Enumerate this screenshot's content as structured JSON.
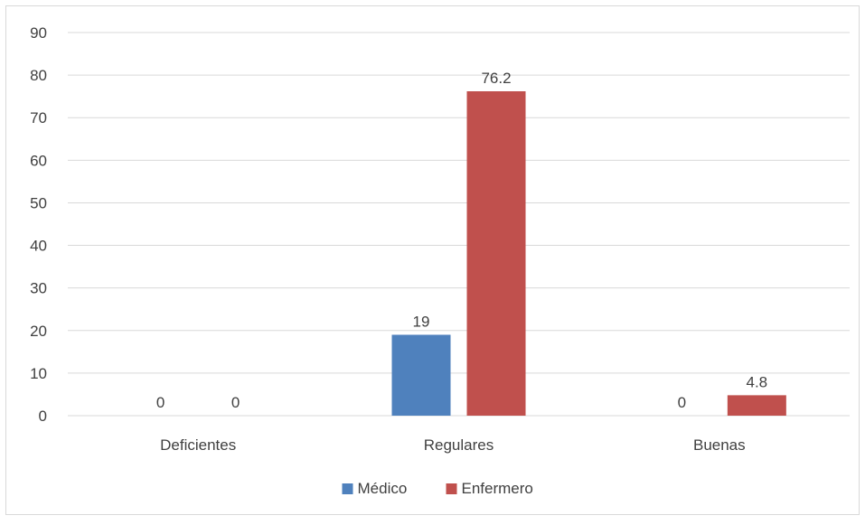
{
  "chart_data": {
    "type": "bar",
    "title": "",
    "xlabel": "",
    "ylabel": "",
    "categories": [
      "Deficientes",
      "Regulares",
      "Buenas"
    ],
    "series": [
      {
        "name": "Médico",
        "values": [
          0,
          19,
          0
        ],
        "color": "#4f81bd"
      },
      {
        "name": "Enfermero",
        "values": [
          0,
          76.2,
          4.8
        ],
        "color": "#c0504d"
      }
    ],
    "data_labels": [
      [
        "0",
        "19",
        "0"
      ],
      [
        "0",
        "76.2",
        "4.8"
      ]
    ],
    "ylim": [
      0,
      90
    ],
    "yticks": [
      "0",
      "10",
      "20",
      "30",
      "40",
      "50",
      "60",
      "70",
      "80",
      "90"
    ],
    "grid": true,
    "legend_position": "bottom"
  }
}
